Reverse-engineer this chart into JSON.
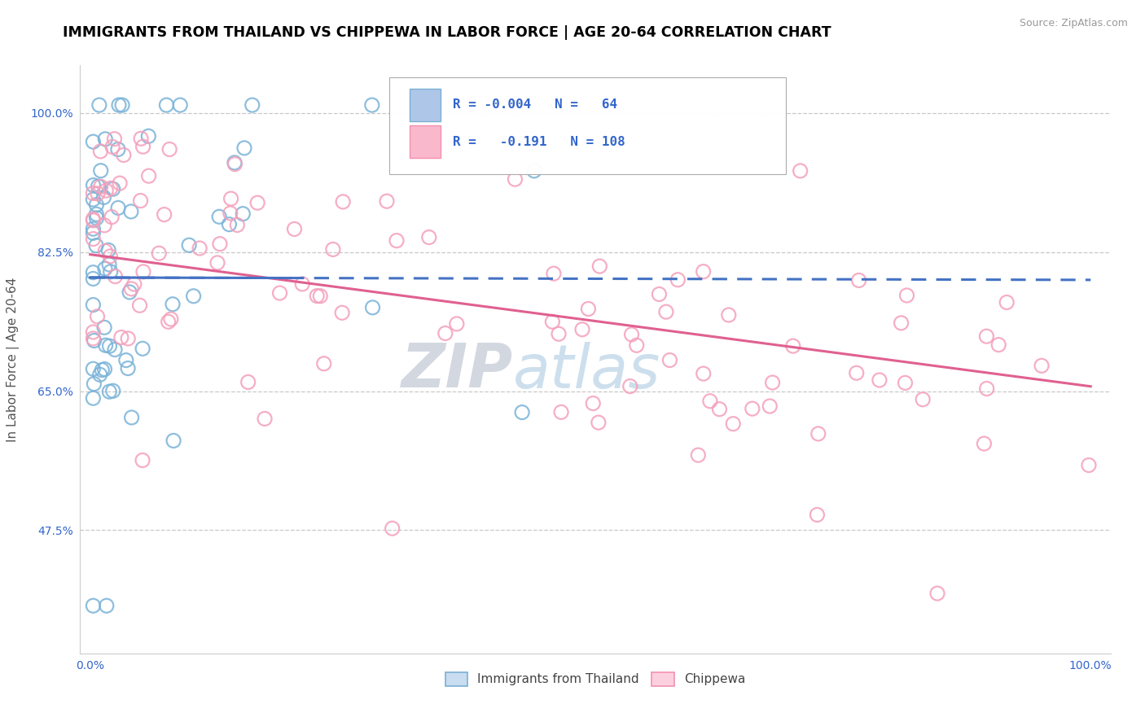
{
  "title": "IMMIGRANTS FROM THAILAND VS CHIPPEWA IN LABOR FORCE | AGE 20-64 CORRELATION CHART",
  "source_text": "Source: ZipAtlas.com",
  "ylabel": "In Labor Force | Age 20-64",
  "xlim": [
    -0.01,
    1.02
  ],
  "ylim": [
    0.32,
    1.06
  ],
  "yticks": [
    0.475,
    0.65,
    0.825,
    1.0
  ],
  "ytick_labels": [
    "47.5%",
    "65.0%",
    "82.5%",
    "100.0%"
  ],
  "xtick_labels": [
    "0.0%",
    "100.0%"
  ],
  "watermark_zip": "ZIP",
  "watermark_atlas": "atlas",
  "color_blue": "#7ab3d8",
  "color_pink": "#f4a0bb",
  "color_blue_line": "#4472c4",
  "color_pink_line": "#e06090",
  "legend_text_color": "#3366cc",
  "background_color": "#ffffff",
  "grid_color": "#c8c8c8",
  "thai_line_start_y": 0.793,
  "thai_line_end_y": 0.79,
  "chip_line_start_y": 0.822,
  "chip_line_end_y": 0.656,
  "thai_seed": 17,
  "chip_seed": 99
}
